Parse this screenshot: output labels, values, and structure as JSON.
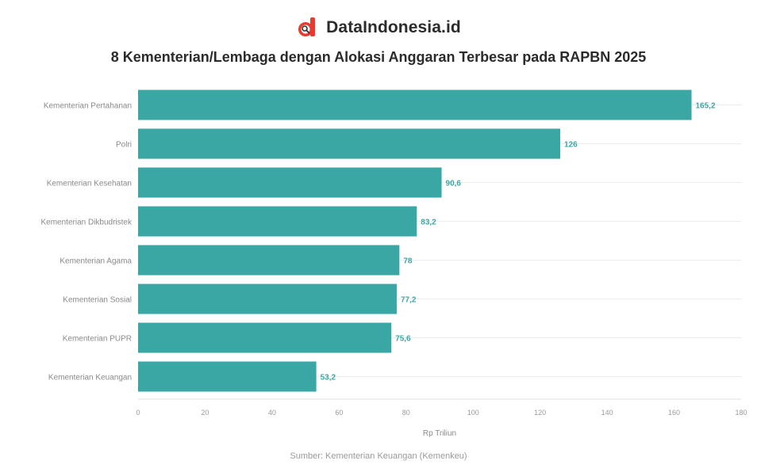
{
  "brand": {
    "name": "DataIndonesia.id",
    "logo_icon": "dataindonesia-logo-icon",
    "logo_color": "#e63b2e"
  },
  "title": "8 Kementerian/Lembaga dengan Alokasi Anggaran Terbesar pada RAPBN 2025",
  "source": "Sumber: Kementerian Keuangan (Kemenkeu)",
  "chart_data": {
    "type": "bar",
    "orientation": "horizontal",
    "categories": [
      "Kementerian Pertahanan",
      "Polri",
      "Kementerian Kesehatan",
      "Kementerian Dikbudristek",
      "Kementerian Agama",
      "Kementerian Sosial",
      "Kementerian PUPR",
      "Kementerian Keuangan"
    ],
    "values": [
      165.2,
      126,
      90.6,
      83.2,
      78,
      77.2,
      75.6,
      53.2
    ],
    "value_labels": [
      "165,2",
      "126",
      "90,6",
      "83,2",
      "78",
      "77,2",
      "75,6",
      "53,2"
    ],
    "xlabel": "Rp Triliun",
    "ylabel": "",
    "xlim": [
      0,
      180
    ],
    "x_ticks": [
      0,
      20,
      40,
      60,
      80,
      100,
      120,
      140,
      160,
      180
    ],
    "grid": true,
    "bar_color": "#3aa7a4",
    "label_color": "#3aa7a4",
    "grid_color": "#ececec"
  }
}
